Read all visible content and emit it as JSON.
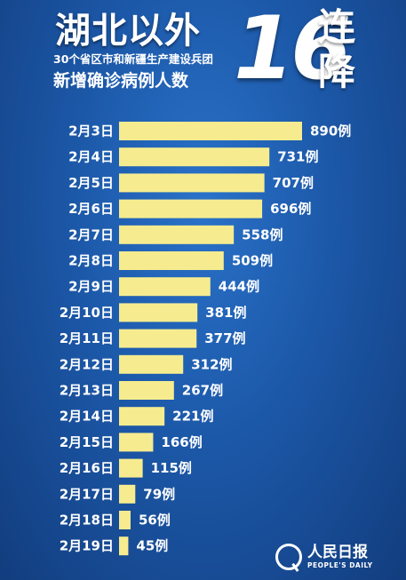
{
  "header": {
    "title": "湖北以外",
    "big_number": "16",
    "big_char_1": "连",
    "big_char_2": "降",
    "subtitle_1": "30个省区市和新疆生产建设兵团",
    "subtitle_2": "新增确诊病例人数"
  },
  "chart_data": {
    "type": "bar",
    "orientation": "horizontal",
    "categories": [
      "2月3日",
      "2月4日",
      "2月5日",
      "2月6日",
      "2月7日",
      "2月8日",
      "2月9日",
      "2月10日",
      "2月11日",
      "2月12日",
      "2月13日",
      "2月14日",
      "2月15日",
      "2月16日",
      "2月17日",
      "2月18日",
      "2月19日"
    ],
    "values": [
      890,
      731,
      707,
      696,
      558,
      509,
      444,
      381,
      377,
      312,
      267,
      221,
      166,
      115,
      79,
      56,
      45
    ],
    "value_suffix": "例",
    "bar_color": "#f6ec8f",
    "grid": false
  },
  "logo": {
    "name_cn": "人民日报",
    "name_en": "PEOPLE'S DAILY"
  }
}
